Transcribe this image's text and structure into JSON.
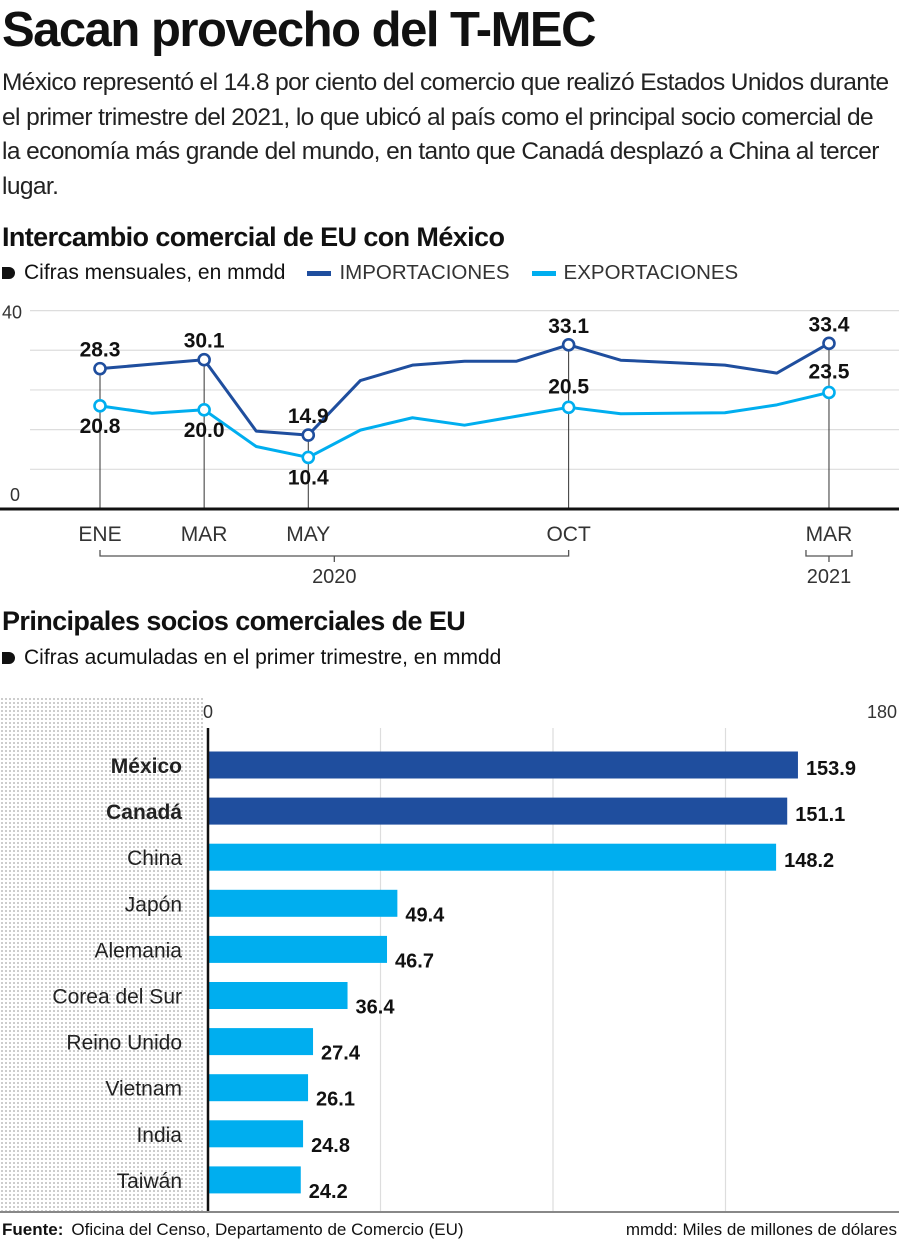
{
  "title": "Sacan provecho del T-MEC",
  "lede": "México representó el 14.8 por ciento del comercio que realizó Estados Unidos durante el primer trimestre del 2021, lo que ubicó al país como el principal socio comercial de la economía más grande del mundo, en tanto que Canadá desplazó a China al tercer lugar.",
  "colors": {
    "importaciones": "#1f4e9e",
    "exportaciones": "#00aeef",
    "highlight_bar": "#1f4e9e",
    "bar": "#00aeef"
  },
  "chart_data": [
    {
      "type": "line",
      "title": "Intercambio comercial de EU con México",
      "subtitle": "Cifras mensuales, en mmdd",
      "x": [
        "2020-01",
        "2020-02",
        "2020-03",
        "2020-04",
        "2020-05",
        "2020-06",
        "2020-07",
        "2020-08",
        "2020-09",
        "2020-10",
        "2020-11",
        "2020-12",
        "2021-01",
        "2021-02",
        "2021-03"
      ],
      "x_ticks": [
        {
          "index": 0,
          "label": "ENE"
        },
        {
          "index": 2,
          "label": "MAR"
        },
        {
          "index": 4,
          "label": "MAY"
        },
        {
          "index": 9,
          "label": "OCT"
        },
        {
          "index": 14,
          "label": "MAR"
        }
      ],
      "year_groups": [
        {
          "label": "2020",
          "from": 0,
          "to": 9
        },
        {
          "label": "2021",
          "from": 14,
          "to": 14
        }
      ],
      "ylim": [
        0,
        40
      ],
      "y_ticks": [
        "0",
        "40"
      ],
      "grid": true,
      "legend_position": "top",
      "series": [
        {
          "name": "IMPORTACIONES",
          "values": [
            28.3,
            29.2,
            30.1,
            15.7,
            14.9,
            25.9,
            29.0,
            29.8,
            29.8,
            33.1,
            30.0,
            29.5,
            29.0,
            27.4,
            33.4
          ],
          "labels": [
            {
              "index": 0,
              "text": "28.3"
            },
            {
              "index": 2,
              "text": "30.1"
            },
            {
              "index": 4,
              "text": "14.9"
            },
            {
              "index": 9,
              "text": "33.1"
            },
            {
              "index": 14,
              "text": "33.4"
            }
          ]
        },
        {
          "name": "EXPORTACIONES",
          "values": [
            20.8,
            19.3,
            20.0,
            12.6,
            10.4,
            15.9,
            18.4,
            16.9,
            18.7,
            20.5,
            19.2,
            19.3,
            19.4,
            21.0,
            23.5
          ],
          "labels": [
            {
              "index": 0,
              "text": "20.8"
            },
            {
              "index": 2,
              "text": "20.0"
            },
            {
              "index": 4,
              "text": "10.4"
            },
            {
              "index": 9,
              "text": "20.5"
            },
            {
              "index": 14,
              "text": "23.5"
            }
          ]
        }
      ]
    },
    {
      "type": "bar",
      "orientation": "horizontal",
      "title": "Principales socios comerciales de EU",
      "subtitle": "Cifras acumuladas en el primer trimestre, en mmdd",
      "categories": [
        "México",
        "Canadá",
        "China",
        "Japón",
        "Alemania",
        "Corea del Sur",
        "Reino Unido",
        "Vietnam",
        "India",
        "Taiwán"
      ],
      "values": [
        153.9,
        151.1,
        148.2,
        49.4,
        46.7,
        36.4,
        27.4,
        26.1,
        24.8,
        24.2
      ],
      "value_labels": [
        "153.9",
        "151.1",
        "148.2",
        "49.4",
        "46.7",
        "36.4",
        "27.4",
        "26.1",
        "24.8",
        "24.2"
      ],
      "highlighted": [
        "México",
        "Canadá"
      ],
      "xlim": [
        0,
        180
      ],
      "x_ticks": [
        "0",
        "180"
      ],
      "grid": true
    }
  ],
  "footer": {
    "source_label": "Fuente:",
    "source": "Oficina del Censo, Departamento de Comercio (EU)",
    "note": "mmdd: Miles de millones de dólares"
  }
}
